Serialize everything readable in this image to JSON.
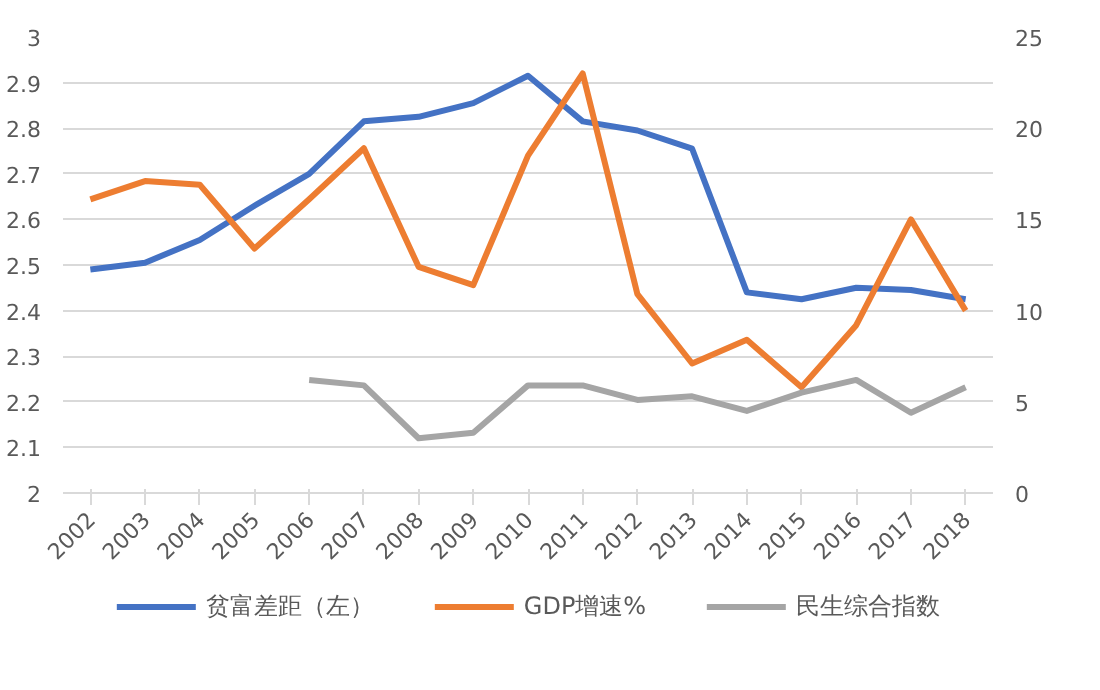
{
  "chart_data": {
    "type": "line",
    "categories": [
      "2002",
      "2003",
      "2004",
      "2005",
      "2006",
      "2007",
      "2008",
      "2009",
      "2010",
      "2011",
      "2012",
      "2013",
      "2014",
      "2015",
      "2016",
      "2017",
      "2018"
    ],
    "series": [
      {
        "name": "贫富差距（左）",
        "color": "#4472c4",
        "values": [
          2.49,
          2.505,
          2.555,
          2.63,
          2.7,
          2.815,
          2.825,
          2.855,
          2.915,
          2.815,
          2.795,
          2.755,
          2.44,
          2.425,
          2.45,
          2.445,
          2.425
        ]
      },
      {
        "name": "GDP增速%",
        "color": "#ed7d31",
        "axis": "y2",
        "values": [
          16.1,
          17.1,
          16.9,
          13.4,
          16.1,
          18.9,
          12.4,
          11.4,
          18.5,
          23.0,
          10.9,
          7.1,
          8.4,
          5.8,
          9.2,
          15.0,
          10.0
        ]
      },
      {
        "name": "民生综合指数",
        "color": "#a5a5a5",
        "axis": "y2",
        "values": [
          null,
          null,
          null,
          null,
          6.2,
          5.9,
          3.0,
          3.3,
          5.9,
          5.9,
          5.1,
          5.3,
          4.5,
          5.5,
          6.2,
          4.4,
          5.8
        ]
      }
    ],
    "ylim": [
      2,
      3
    ],
    "yticks": [
      2,
      2.1,
      2.2,
      2.3,
      2.4,
      2.5,
      2.6,
      2.7,
      2.8,
      2.9,
      3
    ],
    "y2lim": [
      0,
      25
    ],
    "y2ticks": [
      0,
      5,
      10,
      15,
      20,
      25
    ],
    "grid": "y",
    "legend": "bottom",
    "marker": "none",
    "line_style": "solid"
  }
}
